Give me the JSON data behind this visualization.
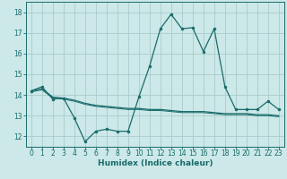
{
  "title": "",
  "xlabel": "Humidex (Indice chaleur)",
  "background_color": "#cce8e8",
  "grid_color": "#aacccc",
  "line_color": "#1a6b6b",
  "x": [
    0,
    1,
    2,
    3,
    4,
    5,
    6,
    7,
    8,
    9,
    10,
    11,
    12,
    13,
    14,
    15,
    16,
    17,
    18,
    19,
    20,
    21,
    22,
    23
  ],
  "series1": [
    14.2,
    14.4,
    13.8,
    13.85,
    12.9,
    11.75,
    12.25,
    12.35,
    12.25,
    12.25,
    13.9,
    15.4,
    17.2,
    17.9,
    17.2,
    17.25,
    16.1,
    17.2,
    14.4,
    13.3,
    13.3,
    13.3,
    13.7,
    13.3
  ],
  "series2": [
    14.2,
    14.3,
    13.9,
    13.85,
    13.75,
    13.6,
    13.5,
    13.45,
    13.4,
    13.35,
    13.35,
    13.3,
    13.3,
    13.25,
    13.2,
    13.2,
    13.2,
    13.15,
    13.1,
    13.1,
    13.1,
    13.05,
    13.05,
    13.0
  ],
  "series3": [
    14.15,
    14.25,
    13.85,
    13.8,
    13.7,
    13.55,
    13.45,
    13.4,
    13.35,
    13.3,
    13.3,
    13.25,
    13.25,
    13.2,
    13.15,
    13.15,
    13.15,
    13.1,
    13.05,
    13.05,
    13.05,
    13.0,
    13.0,
    12.95
  ],
  "ylim": [
    11.5,
    18.5
  ],
  "yticks": [
    12,
    13,
    14,
    15,
    16,
    17,
    18
  ],
  "xlim": [
    -0.5,
    23.5
  ],
  "xticks": [
    0,
    1,
    2,
    3,
    4,
    5,
    6,
    7,
    8,
    9,
    10,
    11,
    12,
    13,
    14,
    15,
    16,
    17,
    18,
    19,
    20,
    21,
    22,
    23
  ],
  "xlabel_fontsize": 6.5,
  "tick_fontsize": 5.5
}
